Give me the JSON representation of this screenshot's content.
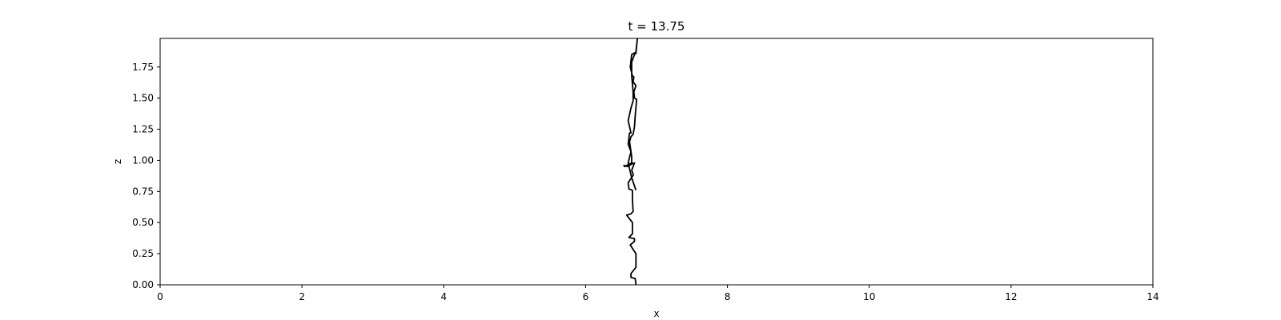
{
  "chart_data": {
    "type": "line",
    "title": "t = 13.75",
    "xlabel": "x",
    "ylabel": "z",
    "xlim": [
      0,
      14
    ],
    "ylim": [
      0,
      1.98
    ],
    "xticks": [
      0,
      2,
      4,
      6,
      8,
      10,
      12,
      14
    ],
    "xtick_labels": [
      "0",
      "2",
      "4",
      "6",
      "8",
      "10",
      "12",
      "14"
    ],
    "yticks": [
      0,
      0.25,
      0.5,
      0.75,
      1.0,
      1.25,
      1.5,
      1.75
    ],
    "ytick_labels": [
      "0.00",
      "0.25",
      "0.50",
      "0.75",
      "1.00",
      "1.25",
      "1.50",
      "1.75"
    ],
    "grid": false,
    "line_color": "#000000",
    "series": [
      {
        "x": [
          6.71,
          6.7,
          6.64,
          6.64,
          6.71,
          6.71,
          6.63,
          6.69,
          6.69,
          6.61,
          6.66,
          6.66,
          6.58,
          6.64,
          6.67,
          6.66,
          6.66,
          6.61,
          6.6,
          6.67,
          6.67,
          6.65,
          6.69,
          6.65,
          6.59,
          6.54,
          6.55,
          6.65,
          6.65,
          6.62,
          6.64,
          6.67,
          6.69,
          6.7,
          6.72,
          6.69,
          6.68,
          6.71,
          6.67,
          6.68,
          6.66,
          6.63,
          6.65,
          6.71,
          6.73,
          6.71,
          6.69,
          6.65,
          6.65,
          6.67,
          6.67,
          6.64,
          6.6,
          6.64,
          6.62,
          6.6,
          6.64,
          6.6,
          6.65,
          6.71
        ],
        "y": [
          0.0,
          0.05,
          0.06,
          0.09,
          0.14,
          0.25,
          0.32,
          0.35,
          0.37,
          0.38,
          0.41,
          0.5,
          0.56,
          0.57,
          0.59,
          0.69,
          0.76,
          0.77,
          0.82,
          0.88,
          0.89,
          0.92,
          0.98,
          0.97,
          0.95,
          0.96,
          0.95,
          0.98,
          1.03,
          1.15,
          1.19,
          1.21,
          1.27,
          1.36,
          1.49,
          1.5,
          1.55,
          1.6,
          1.63,
          1.67,
          1.68,
          1.75,
          1.85,
          1.87,
          1.98,
          1.86,
          1.85,
          1.79,
          1.68,
          1.55,
          1.48,
          1.42,
          1.32,
          1.22,
          1.22,
          1.13,
          1.07,
          0.98,
          0.86,
          0.76
        ]
      }
    ]
  }
}
